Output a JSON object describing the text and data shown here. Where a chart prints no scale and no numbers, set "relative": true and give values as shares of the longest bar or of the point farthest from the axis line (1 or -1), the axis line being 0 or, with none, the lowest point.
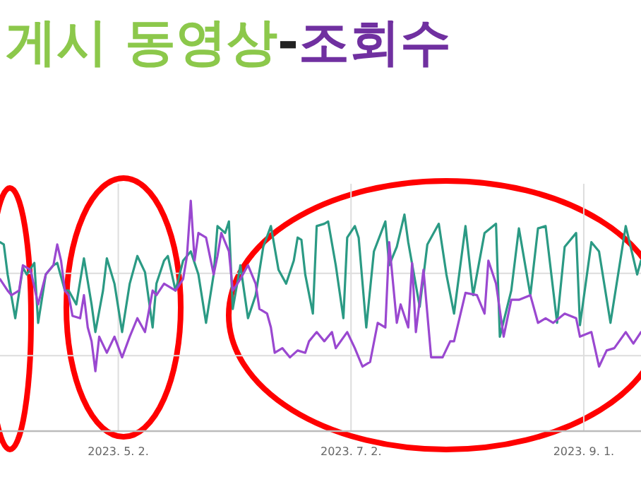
{
  "chart_data": {
    "type": "line",
    "title": "게시 동영상-조회수",
    "relative": true,
    "grid": true,
    "xlim": [
      "2023-04-01",
      "2023-09-16"
    ],
    "xticks": [
      {
        "value": "2023-05-02",
        "label": "2023. 5. 2."
      },
      {
        "value": "2023-07-02",
        "label": "2023. 7. 2."
      },
      {
        "value": "2023-09-01",
        "label": "2023. 9. 1."
      }
    ],
    "series": [
      {
        "color": "#2b9a84",
        "x": [
          "2023-04-01",
          "2023-04-02",
          "2023-04-03",
          "2023-04-05",
          "2023-04-07",
          "2023-04-08",
          "2023-04-10",
          "2023-04-11",
          "2023-04-13",
          "2023-04-15",
          "2023-04-16",
          "2023-04-18",
          "2023-04-19",
          "2023-04-21",
          "2023-04-23",
          "2023-04-25",
          "2023-04-26",
          "2023-04-28",
          "2023-04-29",
          "2023-05-01",
          "2023-05-03",
          "2023-05-05",
          "2023-05-07",
          "2023-05-09",
          "2023-05-11",
          "2023-05-12",
          "2023-05-14",
          "2023-05-15",
          "2023-05-17",
          "2023-05-19",
          "2023-05-21",
          "2023-05-23",
          "2023-05-25",
          "2023-05-27",
          "2023-05-28",
          "2023-05-30",
          "2023-05-31",
          "2023-06-01",
          "2023-06-03",
          "2023-06-05",
          "2023-06-07",
          "2023-06-09",
          "2023-06-11",
          "2023-06-13",
          "2023-06-15",
          "2023-06-17",
          "2023-06-18",
          "2023-06-19",
          "2023-06-20",
          "2023-06-22",
          "2023-06-23",
          "2023-06-25",
          "2023-06-26",
          "2023-06-28",
          "2023-06-30",
          "2023-07-01",
          "2023-07-03",
          "2023-07-04",
          "2023-07-06",
          "2023-07-08",
          "2023-07-11",
          "2023-07-12",
          "2023-07-14",
          "2023-07-16",
          "2023-07-17",
          "2023-07-20",
          "2023-07-22",
          "2023-07-25",
          "2023-07-27",
          "2023-07-29",
          "2023-08-01",
          "2023-08-03",
          "2023-08-06",
          "2023-08-09",
          "2023-08-10",
          "2023-08-13",
          "2023-08-15",
          "2023-08-18",
          "2023-08-20",
          "2023-08-22",
          "2023-08-25",
          "2023-08-27",
          "2023-08-30",
          "2023-08-31",
          "2023-09-03",
          "2023-09-05",
          "2023-09-08",
          "2023-09-12",
          "2023-09-15",
          "2023-09-16"
        ],
        "values": [
          0.82,
          0.81,
          0.68,
          0.49,
          0.71,
          0.68,
          0.73,
          0.47,
          0.68,
          0.72,
          0.73,
          0.61,
          0.61,
          0.55,
          0.75,
          0.55,
          0.43,
          0.61,
          0.75,
          0.64,
          0.43,
          0.64,
          0.76,
          0.69,
          0.45,
          0.64,
          0.74,
          0.76,
          0.61,
          0.74,
          0.78,
          0.68,
          0.47,
          0.68,
          0.89,
          0.86,
          0.91,
          0.53,
          0.72,
          0.49,
          0.59,
          0.8,
          0.89,
          0.7,
          0.64,
          0.74,
          0.84,
          0.83,
          0.68,
          0.51,
          0.89,
          0.9,
          0.91,
          0.72,
          0.49,
          0.84,
          0.89,
          0.84,
          0.45,
          0.78,
          0.91,
          0.72,
          0.8,
          0.94,
          0.82,
          0.54,
          0.81,
          0.9,
          0.68,
          0.51,
          0.89,
          0.59,
          0.86,
          0.9,
          0.41,
          0.61,
          0.88,
          0.59,
          0.88,
          0.89,
          0.47,
          0.8,
          0.86,
          0.46,
          0.82,
          0.78,
          0.47,
          0.89,
          0.68,
          0.74
        ]
      },
      {
        "color": "#9a48d0",
        "x": [
          "2023-04-01",
          "2023-04-03",
          "2023-04-04",
          "2023-04-06",
          "2023-04-07",
          "2023-04-09",
          "2023-04-11",
          "2023-04-13",
          "2023-04-15",
          "2023-04-16",
          "2023-04-17",
          "2023-04-18",
          "2023-04-19",
          "2023-04-20",
          "2023-04-22",
          "2023-04-23",
          "2023-04-24",
          "2023-04-25",
          "2023-04-26",
          "2023-04-27",
          "2023-04-29",
          "2023-05-01",
          "2023-05-03",
          "2023-05-05",
          "2023-05-07",
          "2023-05-09",
          "2023-05-11",
          "2023-05-12",
          "2023-05-14",
          "2023-05-17",
          "2023-05-19",
          "2023-05-20",
          "2023-05-21",
          "2023-05-22",
          "2023-05-23",
          "2023-05-25",
          "2023-05-27",
          "2023-05-28",
          "2023-05-29",
          "2023-05-31",
          "2023-06-01",
          "2023-06-03",
          "2023-06-05",
          "2023-06-07",
          "2023-06-08",
          "2023-06-10",
          "2023-06-11",
          "2023-06-12",
          "2023-06-14",
          "2023-06-16",
          "2023-06-18",
          "2023-06-20",
          "2023-06-21",
          "2023-06-22",
          "2023-06-23",
          "2023-06-25",
          "2023-06-27",
          "2023-06-28",
          "2023-07-01",
          "2023-07-03",
          "2023-07-05",
          "2023-07-07",
          "2023-07-09",
          "2023-07-11",
          "2023-07-12",
          "2023-07-14",
          "2023-07-15",
          "2023-07-17",
          "2023-07-18",
          "2023-07-19",
          "2023-07-21",
          "2023-07-23",
          "2023-07-26",
          "2023-07-28",
          "2023-07-29",
          "2023-08-01",
          "2023-08-04",
          "2023-08-06",
          "2023-08-07",
          "2023-08-09",
          "2023-08-11",
          "2023-08-13",
          "2023-08-15",
          "2023-08-18",
          "2023-08-20",
          "2023-08-22",
          "2023-08-24",
          "2023-08-27",
          "2023-08-30",
          "2023-08-31",
          "2023-09-03",
          "2023-09-05",
          "2023-09-07",
          "2023-09-09",
          "2023-09-12",
          "2023-09-14",
          "2023-09-16"
        ],
        "values": [
          0.66,
          0.61,
          0.59,
          0.61,
          0.72,
          0.7,
          0.55,
          0.68,
          0.72,
          0.81,
          0.74,
          0.61,
          0.59,
          0.5,
          0.49,
          0.59,
          0.45,
          0.39,
          0.26,
          0.41,
          0.34,
          0.41,
          0.32,
          0.41,
          0.49,
          0.43,
          0.61,
          0.59,
          0.64,
          0.61,
          0.66,
          0.76,
          1.0,
          0.74,
          0.86,
          0.84,
          0.68,
          0.76,
          0.86,
          0.78,
          0.61,
          0.66,
          0.72,
          0.64,
          0.53,
          0.51,
          0.45,
          0.34,
          0.36,
          0.32,
          0.35,
          0.34,
          0.39,
          0.41,
          0.43,
          0.39,
          0.43,
          0.36,
          0.43,
          0.36,
          0.28,
          0.3,
          0.47,
          0.45,
          0.82,
          0.47,
          0.55,
          0.45,
          0.73,
          0.43,
          0.7,
          0.32,
          0.32,
          0.39,
          0.39,
          0.6,
          0.59,
          0.51,
          0.74,
          0.64,
          0.41,
          0.57,
          0.57,
          0.59,
          0.47,
          0.49,
          0.47,
          0.51,
          0.49,
          0.41,
          0.43,
          0.28,
          0.35,
          0.36,
          0.43,
          0.38,
          0.43
        ]
      }
    ]
  }
}
